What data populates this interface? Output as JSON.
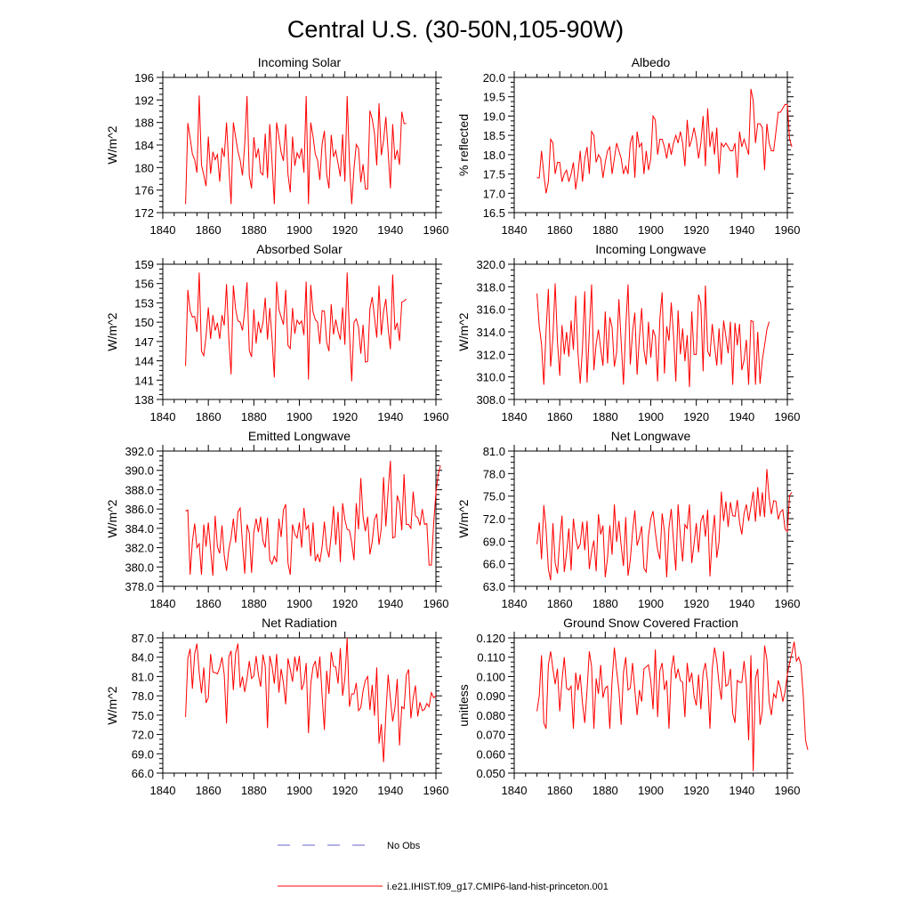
{
  "figure": {
    "title": "Central U.S. (30-50N,105-90W)",
    "line_color": "#ff0000",
    "obs_color": "#6666cc"
  },
  "legend": {
    "items": [
      {
        "label": "No Obs",
        "style": "dashed",
        "color": "#6666cc"
      },
      {
        "label": "i.e21.IHIST.f09_g17.CMIP6-land-hist-princeton.001",
        "style": "solid",
        "color": "#ff0000"
      }
    ]
  },
  "chart_data": [
    {
      "type": "line",
      "title": "Incoming Solar",
      "xlabel": "",
      "ylabel": "W/m^2",
      "xlim": [
        1840,
        1960
      ],
      "ylim": [
        172,
        196
      ],
      "xticks": [
        "1840",
        "1860",
        "1880",
        "1900",
        "1920",
        "1940",
        "1960"
      ],
      "yticks": [
        "172",
        "176",
        "180",
        "184",
        "188",
        "192",
        "196"
      ],
      "x_start": 1850,
      "x_step": 1,
      "values": [
        173.5,
        187.9,
        185.3,
        182.4,
        181.4,
        179.1,
        192.8,
        180.4,
        178.7,
        176.7,
        185.5,
        178.9,
        182.8,
        181.4,
        182.3,
        177.5,
        183.5,
        181.9,
        188.0,
        180.3,
        173.5,
        188.0,
        185.4,
        182.9,
        181.3,
        178.6,
        184.2,
        192.7,
        178.5,
        176.3,
        185.4,
        181.7,
        183.4,
        179.1,
        178.7,
        186.0,
        178.1,
        187.7,
        181.0,
        173.5,
        188.0,
        185.5,
        182.7,
        181.2,
        187.7,
        178.8,
        175.6,
        185.5,
        180.3,
        182.6,
        181.7,
        183.4,
        179.1,
        192.7,
        173.5,
        188.0,
        185.5,
        182.4,
        181.3,
        177.8,
        184.2,
        186.5,
        178.8,
        176.3,
        185.8,
        181.9,
        183.0,
        180.7,
        178.4,
        185.9,
        177.5,
        192.7,
        181.0,
        173.5,
        179.8,
        184.1,
        183.4,
        177.4,
        180.6,
        176.2,
        176.2,
        190.1,
        188.6,
        186.1,
        180.4,
        191.4,
        182.2,
        184.8,
        189.0,
        182.8,
        176.3,
        187.7,
        181.4,
        183.1,
        180.5,
        189.9,
        187.8,
        187.8
      ],
      "axis_positions": {
        "y": "left",
        "x": "bottom"
      }
    },
    {
      "type": "line",
      "title": "Albedo",
      "xlabel": "",
      "ylabel": "% reflected",
      "xlim": [
        1840,
        1960
      ],
      "ylim": [
        16.5,
        20.0
      ],
      "xticks": [
        "1840",
        "1860",
        "1880",
        "1900",
        "1920",
        "1940",
        "1960"
      ],
      "yticks": [
        "16.5",
        "17.0",
        "17.5",
        "18.0",
        "18.5",
        "19.0",
        "19.5",
        "20.0"
      ],
      "x_start": 1850,
      "x_step": 1,
      "values": [
        17.4,
        17.4,
        18.1,
        17.5,
        17.0,
        17.3,
        18.4,
        18.3,
        17.5,
        17.8,
        17.8,
        17.3,
        17.5,
        17.6,
        17.3,
        17.5,
        17.8,
        17.1,
        17.5,
        18.1,
        17.3,
        17.9,
        18.2,
        17.5,
        18.6,
        18.5,
        17.8,
        18.0,
        17.9,
        17.4,
        17.8,
        18.1,
        18.2,
        17.5,
        17.9,
        18.3,
        18.1,
        17.9,
        17.5,
        17.7,
        17.5,
        18.3,
        18.5,
        17.4,
        18.6,
        18.2,
        18.3,
        17.5,
        18.1,
        17.6,
        17.9,
        19.0,
        18.9,
        18.0,
        18.4,
        18.4,
        18.2,
        17.9,
        18.3,
        18.0,
        18.3,
        18.5,
        18.3,
        18.6,
        18.3,
        17.7,
        18.9,
        18.2,
        18.4,
        18.7,
        18.4,
        17.9,
        18.3,
        19.0,
        17.7,
        19.2,
        18.2,
        18.6,
        18.0,
        18.7,
        17.5,
        18.3,
        18.2,
        18.3,
        18.2,
        18.1,
        18.1,
        18.3,
        17.4,
        18.6,
        18.2,
        18.4,
        18.2,
        18.0,
        19.7,
        19.4,
        18.3,
        18.8,
        18.8,
        18.7,
        17.6,
        18.8,
        18.3,
        18.1,
        18.1,
        18.6,
        19.1,
        19.1,
        19.2,
        19.3,
        19.3,
        18.4,
        18.2
      ],
      "axis_positions": {
        "y": "left",
        "x": "bottom"
      }
    },
    {
      "type": "line",
      "title": "Absorbed Solar",
      "xlabel": "",
      "ylabel": "W/m^2",
      "xlim": [
        1840,
        1960
      ],
      "ylim": [
        138,
        159
      ],
      "xticks": [
        "1840",
        "1860",
        "1880",
        "1900",
        "1920",
        "1940",
        "1960"
      ],
      "yticks": [
        "138",
        "141",
        "144",
        "147",
        "150",
        "153",
        "156",
        "159"
      ],
      "x_start": 1850,
      "x_step": 1,
      "values": [
        143.2,
        155.0,
        151.8,
        150.8,
        150.9,
        148.5,
        157.7,
        145.5,
        144.8,
        147.8,
        152.3,
        147.4,
        151.1,
        148.7,
        149.9,
        147.4,
        151.1,
        149.5,
        155.9,
        147.4,
        141.9,
        155.7,
        152.0,
        150.2,
        150.0,
        148.7,
        151.8,
        156.2,
        145.6,
        144.6,
        152.0,
        146.7,
        150.1,
        148.3,
        149.9,
        153.8,
        147.3,
        152.2,
        147.4,
        141.4,
        156.3,
        152.0,
        150.8,
        149.6,
        155.0,
        146.4,
        145.9,
        152.2,
        148.2,
        150.3,
        149.7,
        150.2,
        148.0,
        156.3,
        141.1,
        155.8,
        151.6,
        150.4,
        150.0,
        146.6,
        151.8,
        151.7,
        146.9,
        145.5,
        152.8,
        148.1,
        150.4,
        148.6,
        147.3,
        152.3,
        146.5,
        157.7,
        148.4,
        140.8,
        150.0,
        150.5,
        149.2,
        145.1,
        149.6,
        143.8,
        143.9,
        152.1,
        153.9,
        150.8,
        147.6,
        155.7,
        148.0,
        151.7,
        153.6,
        149.0,
        145.8,
        157.4,
        148.8,
        149.9,
        147.1,
        153.1,
        153.3,
        153.6
      ],
      "axis_positions": {
        "y": "left",
        "x": "bottom"
      }
    },
    {
      "type": "line",
      "title": "Incoming Longwave",
      "xlabel": "",
      "ylabel": "W/m^2",
      "xlim": [
        1840,
        1960
      ],
      "ylim": [
        308.0,
        320.0
      ],
      "xticks": [
        "1840",
        "1860",
        "1880",
        "1900",
        "1920",
        "1940",
        "1960"
      ],
      "yticks": [
        "308.0",
        "310.0",
        "312.0",
        "314.0",
        "316.0",
        "318.0",
        "320.0"
      ],
      "x_start": 1850,
      "x_step": 1,
      "values": [
        317.4,
        314.5,
        312.9,
        309.3,
        314.1,
        317.8,
        310.9,
        313.5,
        318.3,
        313.1,
        310.1,
        314.6,
        312.0,
        314.0,
        311.8,
        315.0,
        312.4,
        317.2,
        312.2,
        309.4,
        312.6,
        317.6,
        309.5,
        314.0,
        318.2,
        310.6,
        312.9,
        314.2,
        312.5,
        311.0,
        315.8,
        311.2,
        315.3,
        314.4,
        310.9,
        312.2,
        316.9,
        313.1,
        309.3,
        314.4,
        318.2,
        311.1,
        314.0,
        315.7,
        310.2,
        313.5,
        316.1,
        312.4,
        311.1,
        314.9,
        311.7,
        314.2,
        313.6,
        309.6,
        315.2,
        317.5,
        310.3,
        314.5,
        313.2,
        316.6,
        313.7,
        309.6,
        315.9,
        312.0,
        314.3,
        311.4,
        313.7,
        309.1,
        315.8,
        312.0,
        312.0,
        317.3,
        316.5,
        310.5,
        318.1,
        312.3,
        311.8,
        314.7,
        312.8,
        311.0,
        314.3,
        311.1,
        315.0,
        313.6,
        312.1,
        314.9,
        309.3,
        314.8,
        312.8,
        314.7,
        310.6,
        311.5,
        313.3,
        309.3,
        315.0,
        314.9,
        309.3,
        314.0,
        309.4,
        311.5,
        312.8,
        314.2,
        314.9
      ],
      "axis_positions": {
        "y": "left",
        "x": "bottom"
      }
    },
    {
      "type": "line",
      "title": "Emitted Longwave",
      "xlabel": "",
      "ylabel": "W/m^2",
      "xlim": [
        1840,
        1960
      ],
      "ylim": [
        378.0,
        392.0
      ],
      "xticks": [
        "1840",
        "1860",
        "1880",
        "1900",
        "1920",
        "1940",
        "1960"
      ],
      "yticks": [
        "378.0",
        "380.0",
        "382.0",
        "384.0",
        "386.0",
        "388.0",
        "390.0",
        "392.0"
      ],
      "x_start": 1850,
      "x_step": 1,
      "values": [
        385.8,
        385.9,
        379.2,
        382.6,
        384.5,
        382.0,
        382.4,
        379.2,
        384.4,
        382.1,
        384.6,
        381.8,
        379.1,
        385.3,
        382.1,
        381.4,
        384.3,
        381.2,
        379.6,
        381.8,
        383.0,
        385.0,
        382.5,
        385.7,
        386.1,
        382.4,
        379.3,
        384.4,
        383.5,
        379.4,
        383.6,
        385.0,
        383.6,
        385.2,
        382.7,
        382.0,
        385.1,
        380.7,
        380.3,
        381.1,
        380.5,
        385.0,
        383.1,
        385.9,
        386.5,
        380.4,
        379.2,
        384.4,
        383.4,
        383.0,
        384.6,
        382.0,
        386.1,
        383.9,
        384.3,
        381.1,
        384.6,
        380.6,
        381.3,
        380.5,
        382.1,
        384.7,
        382.0,
        381.0,
        383.3,
        386.3,
        382.3,
        385.7,
        380.5,
        386.6,
        384.9,
        383.9,
        383.8,
        382.5,
        380.7,
        386.6,
        383.9,
        389.2,
        385.2,
        383.7,
        385.2,
        381.3,
        382.6,
        384.9,
        385.5,
        382.3,
        384.0,
        389.3,
        384.2,
        387.9,
        391.0,
        383.0,
        383.1,
        387.4,
        386.6,
        383.8,
        389.6,
        384.4,
        384.4,
        384.0,
        387.8,
        385.3,
        385.1,
        384.3,
        386.0,
        384.4,
        384.5,
        380.2,
        380.2,
        384.5,
        387.7,
        389.6,
        390.5
      ],
      "axis_positions": {
        "y": "left",
        "x": "bottom"
      }
    },
    {
      "type": "line",
      "title": "Net Longwave",
      "xlabel": "",
      "ylabel": "W/m^2",
      "xlim": [
        1840,
        1960
      ],
      "ylim": [
        63.0,
        81.0
      ],
      "xticks": [
        "1840",
        "1860",
        "1880",
        "1900",
        "1920",
        "1940",
        "1960"
      ],
      "yticks": [
        "63.0",
        "66.0",
        "69.0",
        "72.0",
        "75.0",
        "78.0",
        "81.0"
      ],
      "x_start": 1850,
      "x_step": 1,
      "values": [
        68.6,
        71.5,
        66.6,
        73.8,
        70.6,
        65.3,
        63.8,
        71.4,
        66.1,
        64.7,
        69.1,
        72.4,
        64.9,
        67.4,
        70.7,
        65.1,
        72.0,
        69.4,
        68.0,
        68.6,
        71.6,
        67.8,
        71.7,
        65.3,
        67.6,
        69.1,
        65.0,
        72.6,
        69.9,
        71.1,
        64.2,
        66.8,
        71.1,
        67.2,
        73.9,
        68.9,
        71.7,
        68.4,
        65.7,
        72.2,
        64.4,
        66.5,
        70.3,
        73.1,
        68.4,
        69.5,
        71.0,
        65.4,
        64.9,
        69.7,
        72.0,
        73.0,
        70.2,
        67.9,
        66.6,
        72.7,
        70.3,
        64.2,
        70.8,
        73.3,
        68.9,
        65.1,
        73.9,
        69.6,
        66.3,
        71.2,
        70.7,
        73.9,
        66.1,
        68.6,
        71.4,
        67.5,
        71.6,
        72.5,
        69.6,
        73.2,
        64.3,
        69.4,
        72.5,
        66.8,
        69.0,
        75.6,
        71.7,
        74.3,
        70.9,
        74.2,
        72.4,
        72.3,
        74.5,
        71.5,
        69.9,
        72.7,
        73.9,
        71.7,
        73.6,
        75.6,
        71.6,
        76.2,
        72.3,
        75.5,
        72.2,
        78.6,
        74.8,
        72.6,
        74.4,
        74.3,
        71.9,
        72.9,
        73.2,
        70.6,
        70.3,
        75.1,
        75.5
      ],
      "axis_positions": {
        "y": "left",
        "x": "bottom"
      }
    },
    {
      "type": "line",
      "title": "Net Radiation",
      "xlabel": "",
      "ylabel": "W/m^2",
      "xlim": [
        1840,
        1960
      ],
      "ylim": [
        66.0,
        87.0
      ],
      "xticks": [
        "1840",
        "1860",
        "1880",
        "1900",
        "1920",
        "1940",
        "1960"
      ],
      "yticks": [
        "66.0",
        "69.0",
        "72.0",
        "75.0",
        "78.0",
        "81.0",
        "84.0",
        "87.0"
      ],
      "x_start": 1850,
      "x_step": 1,
      "values": [
        74.7,
        83.8,
        85.3,
        79.1,
        84.5,
        86.1,
        81.6,
        78.4,
        82.4,
        76.9,
        77.7,
        84.5,
        81.7,
        81.6,
        81.4,
        82.4,
        84.0,
        81.3,
        73.7,
        84.0,
        85.0,
        78.9,
        84.6,
        86.1,
        79.3,
        81.0,
        78.6,
        80.7,
        83.4,
        80.7,
        81.1,
        84.2,
        81.3,
        79.4,
        84.4,
        82.6,
        73.0,
        84.2,
        82.6,
        79.9,
        84.5,
        78.5,
        82.2,
        80.0,
        76.7,
        83.8,
        82.1,
        80.2,
        84.1,
        81.8,
        84.2,
        78.9,
        80.0,
        83.1,
        72.2,
        79.8,
        82.5,
        83.4,
        80.7,
        84.1,
        78.0,
        72.7,
        81.9,
        78.3,
        84.8,
        82.6,
        82.5,
        79.9,
        85.4,
        78.0,
        80.7,
        87.0,
        76.3,
        78.3,
        78.3,
        80.0,
        75.7,
        76.2,
        78.8,
        80.4,
        81.0,
        75.8,
        79.7,
        74.9,
        82.4,
        70.6,
        73.6,
        67.7,
        75.1,
        81.3,
        77.6,
        74.0,
        76.2,
        80.6,
        70.3,
        76.3,
        76.0,
        81.2,
        82.1,
        74.5,
        77.6,
        79.6,
        74.8,
        77.0,
        75.7,
        75.9,
        76.8,
        76.3,
        78.5,
        77.7,
        78.0
      ],
      "axis_positions": {
        "y": "left",
        "x": "bottom"
      }
    },
    {
      "type": "line",
      "title": "Ground Snow Covered Fraction",
      "xlabel": "",
      "ylabel": "unitless",
      "xlim": [
        1840,
        1960
      ],
      "ylim": [
        0.05,
        0.12
      ],
      "xticks": [
        "1840",
        "1860",
        "1880",
        "1900",
        "1920",
        "1940",
        "1960"
      ],
      "yticks": [
        "0.050",
        "0.060",
        "0.070",
        "0.080",
        "0.090",
        "0.100",
        "0.110",
        "0.120"
      ],
      "x_start": 1850,
      "x_step": 1,
      "values": [
        0.082,
        0.09,
        0.111,
        0.076,
        0.073,
        0.106,
        0.113,
        0.104,
        0.096,
        0.104,
        0.082,
        0.098,
        0.11,
        0.094,
        0.093,
        0.095,
        0.073,
        0.102,
        0.093,
        0.101,
        0.086,
        0.076,
        0.093,
        0.113,
        0.105,
        0.073,
        0.099,
        0.091,
        0.106,
        0.089,
        0.094,
        0.095,
        0.073,
        0.098,
        0.115,
        0.103,
        0.093,
        0.075,
        0.102,
        0.11,
        0.093,
        0.094,
        0.107,
        0.093,
        0.08,
        0.093,
        0.087,
        0.104,
        0.105,
        0.106,
        0.098,
        0.083,
        0.114,
        0.079,
        0.103,
        0.107,
        0.093,
        0.098,
        0.073,
        0.103,
        0.111,
        0.099,
        0.104,
        0.098,
        0.097,
        0.079,
        0.107,
        0.097,
        0.102,
        0.09,
        0.085,
        0.101,
        0.083,
        0.102,
        0.107,
        0.097,
        0.073,
        0.104,
        0.115,
        0.108,
        0.096,
        0.088,
        0.113,
        0.095,
        0.096,
        0.104,
        0.081,
        0.076,
        0.098,
        0.097,
        0.097,
        0.108,
        0.096,
        0.067,
        0.111,
        0.051,
        0.099,
        0.104,
        0.075,
        0.082,
        0.116,
        0.109,
        0.087,
        0.08,
        0.091,
        0.089,
        0.098,
        0.094,
        0.087,
        0.092,
        0.101,
        0.107,
        0.112,
        0.118,
        0.108,
        0.11,
        0.106,
        0.09,
        0.067,
        0.062
      ],
      "axis_positions": {
        "y": "left",
        "x": "bottom"
      }
    }
  ]
}
